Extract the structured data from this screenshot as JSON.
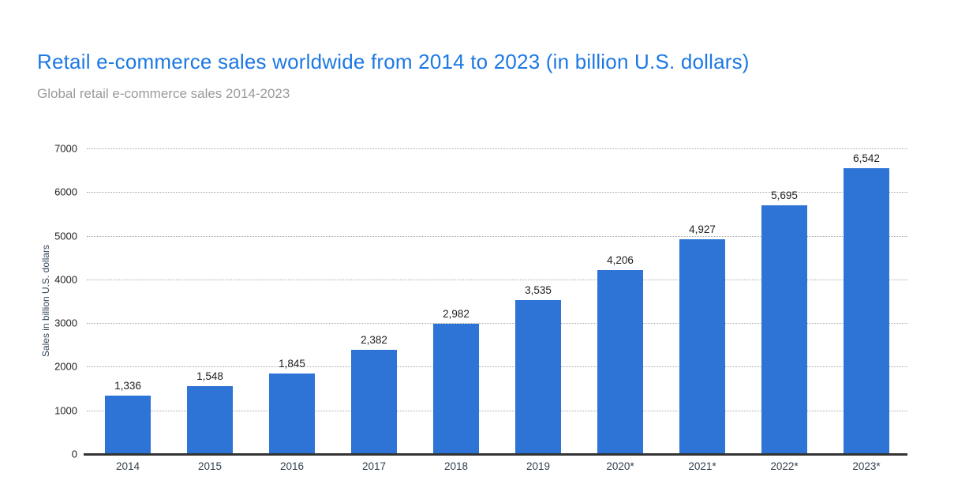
{
  "page": {
    "background_color": "#ffffff"
  },
  "header": {
    "title": "Retail e-commerce sales worldwide from 2014 to 2023 (in billion U.S. dollars)",
    "title_color": "#1c78e3",
    "subtitle": "Global retail e-commerce sales 2014-2023",
    "subtitle_color": "#9a9a9a"
  },
  "chart_data": {
    "type": "bar",
    "title": "Retail e-commerce sales worldwide from 2014 to 2023 (in billion U.S. dollars)",
    "subtitle": "Global retail e-commerce sales 2014-2023",
    "categories": [
      "2014",
      "2015",
      "2016",
      "2017",
      "2018",
      "2019",
      "2020*",
      "2021*",
      "2022*",
      "2023*"
    ],
    "values": [
      1336,
      1548,
      1845,
      2382,
      2982,
      3535,
      4206,
      4927,
      5695,
      6542
    ],
    "value_labels": [
      "1,336",
      "1,548",
      "1,845",
      "2,382",
      "2,982",
      "3,535",
      "4,206",
      "4,927",
      "5,695",
      "6,542"
    ],
    "xlabel": "",
    "ylabel": "Sales in billion U.S. dollars",
    "ylim": [
      0,
      7000
    ],
    "yticks": [
      0,
      1000,
      2000,
      3000,
      4000,
      5000,
      6000,
      7000
    ],
    "grid": "horizontal-dotted",
    "legend_position": "none",
    "bar_color": "#2e73d6",
    "axis_line_color": "#333333",
    "gridline_color": "#a8a8a8"
  }
}
